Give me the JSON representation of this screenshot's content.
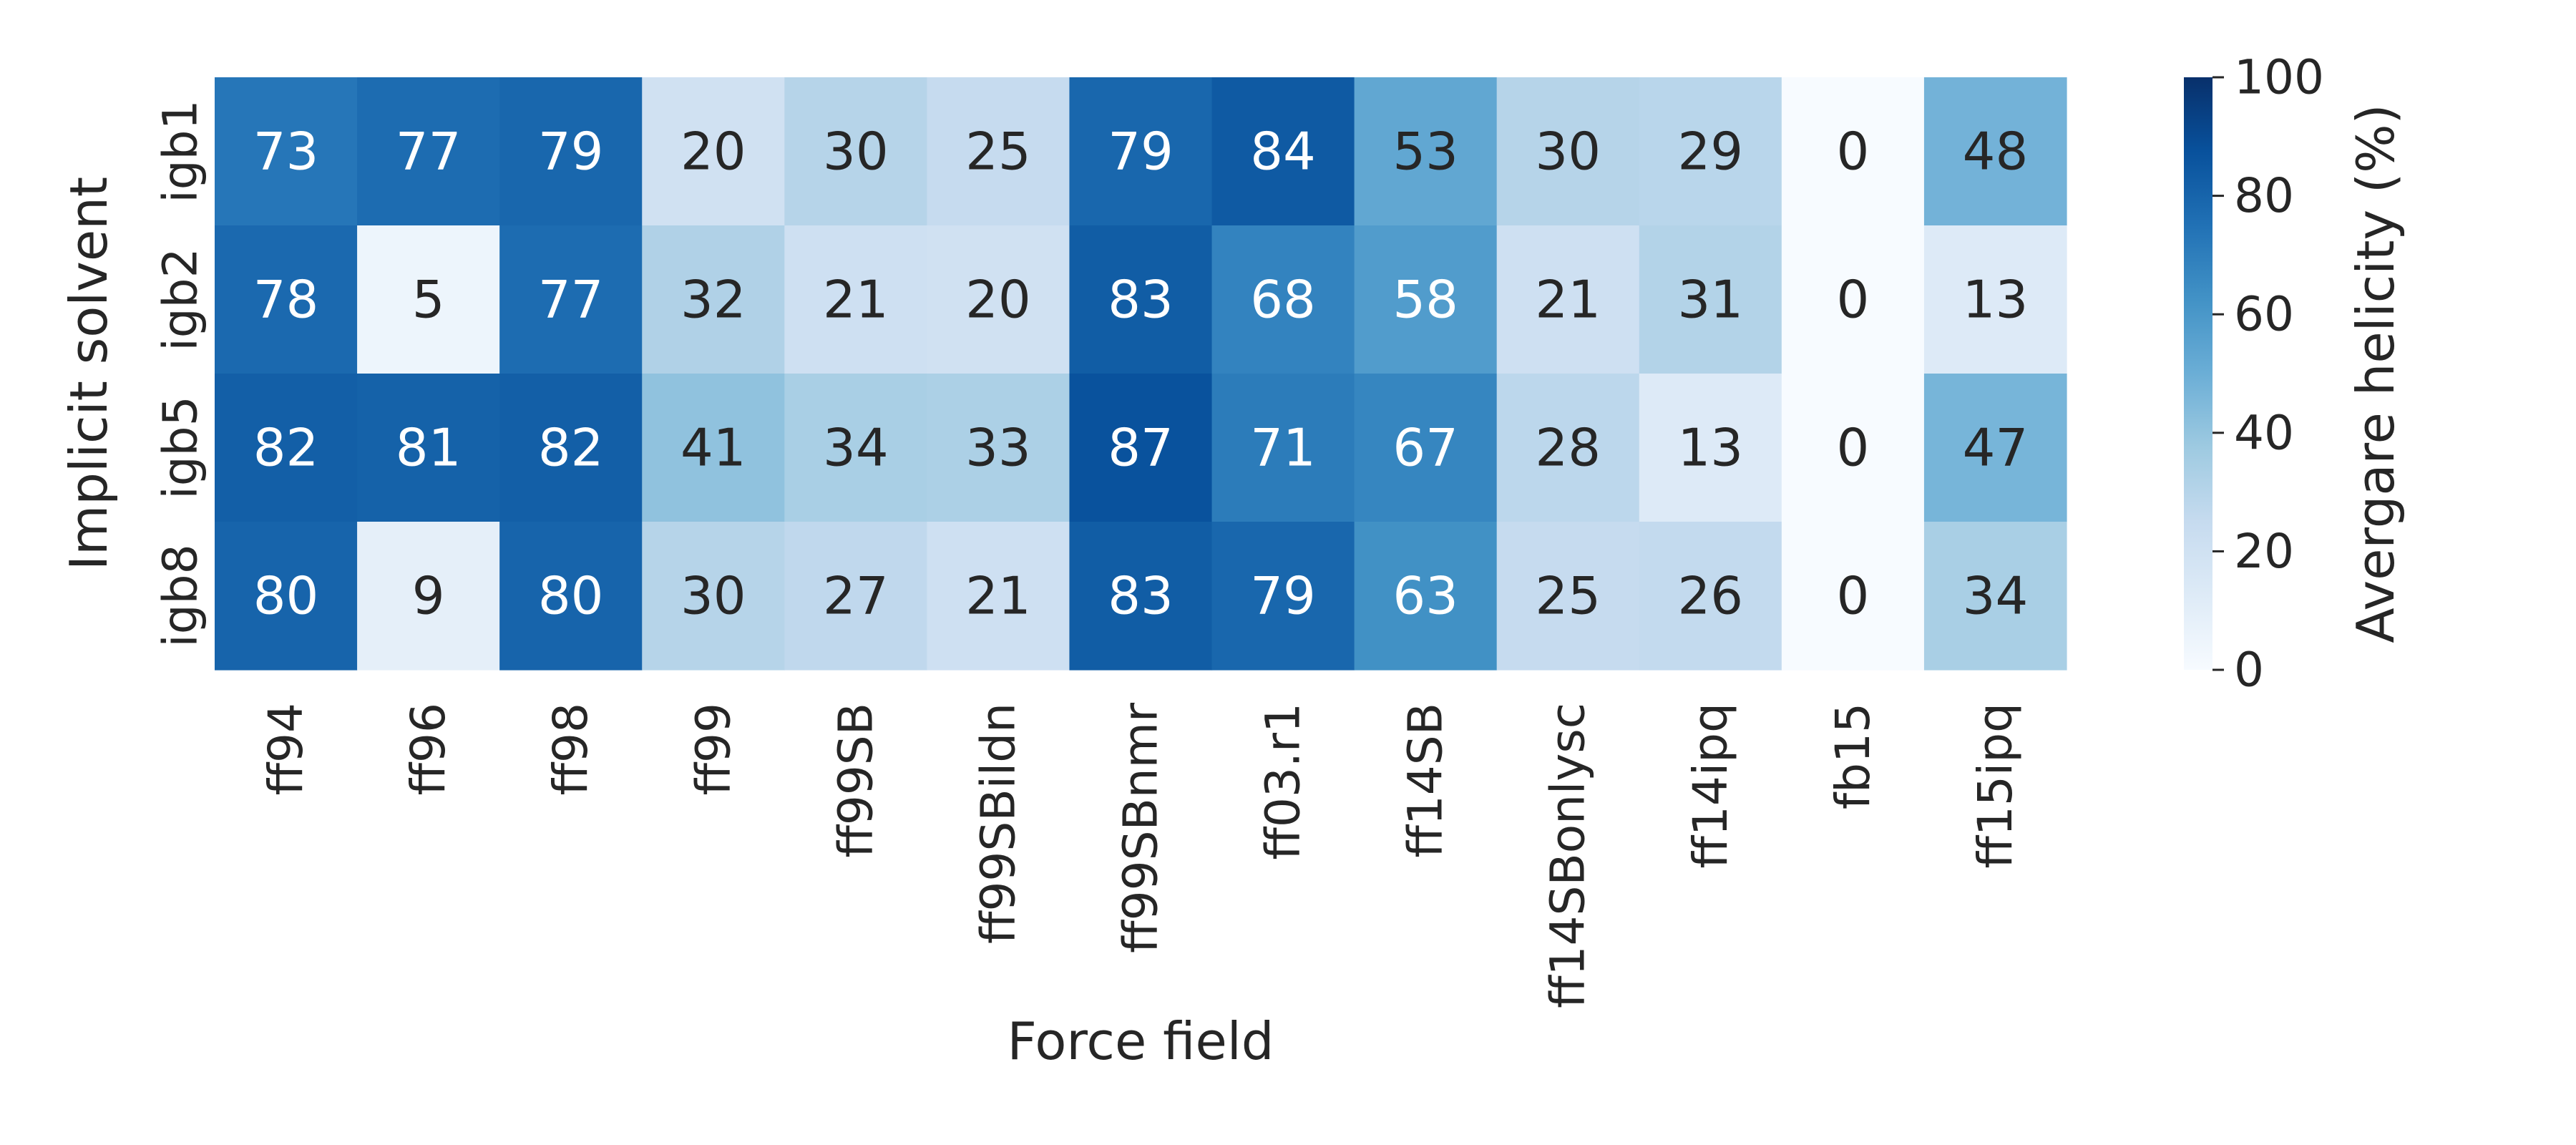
{
  "chart_data": {
    "type": "heatmap",
    "title": "",
    "xlabel": "Force field",
    "ylabel": "Implicit solvent",
    "x_categories": [
      "ff94",
      "ff96",
      "ff98",
      "ff99",
      "ff99SB",
      "ff99SBildn",
      "ff99SBnmr",
      "ff03.r1",
      "ff14SB",
      "ff14SBonlysc",
      "ff14ipq",
      "fb15",
      "ff15ipq"
    ],
    "y_categories": [
      "igb1",
      "igb2",
      "igb5",
      "igb8"
    ],
    "values": [
      [
        73,
        77,
        79,
        20,
        30,
        25,
        79,
        84,
        53,
        30,
        29,
        0,
        48
      ],
      [
        78,
        5,
        77,
        32,
        21,
        20,
        83,
        68,
        58,
        21,
        31,
        0,
        13
      ],
      [
        82,
        81,
        82,
        41,
        34,
        33,
        87,
        71,
        67,
        28,
        13,
        0,
        47
      ],
      [
        80,
        9,
        80,
        30,
        27,
        21,
        83,
        79,
        63,
        25,
        26,
        0,
        34
      ]
    ],
    "annotated": true,
    "colormap": "Blues",
    "vmin": 0,
    "vmax": 100,
    "colorbar": {
      "label": "Avergare helicity (%)",
      "ticks": [
        0,
        20,
        40,
        60,
        80,
        100
      ]
    }
  }
}
